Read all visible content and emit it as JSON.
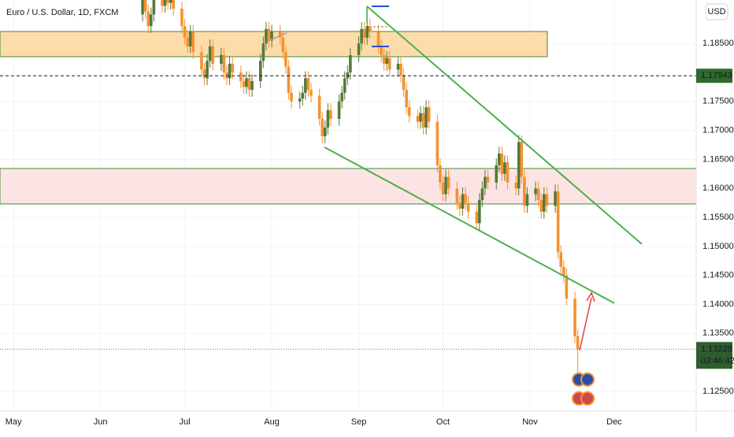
{
  "chart_data": {
    "type": "candlestick",
    "title": "Euro / U.S. Dollar, 1D, FXCM",
    "currency": "USD",
    "x": [
      46,
      47,
      48,
      49,
      50,
      53,
      54,
      55,
      56,
      57,
      60,
      61,
      62,
      63,
      64,
      67,
      68,
      69,
      70,
      71,
      74,
      75,
      76,
      77,
      78,
      81,
      82,
      83,
      84,
      85,
      88,
      89,
      90,
      91,
      92,
      95,
      96,
      97,
      98,
      99,
      102,
      103,
      104,
      105,
      106,
      109,
      110,
      111,
      112,
      113,
      116,
      117,
      118,
      119,
      120,
      123,
      124,
      125,
      126,
      127,
      130,
      131,
      132,
      133,
      134,
      137,
      138,
      139,
      140,
      141,
      144,
      145,
      146,
      147,
      148,
      151,
      152,
      153,
      154,
      155,
      158,
      159,
      160,
      161,
      162,
      165,
      166,
      167,
      168,
      169,
      172,
      173,
      174,
      175,
      176,
      179,
      180,
      181,
      182,
      183,
      186,
      187,
      188,
      189,
      190,
      193,
      194,
      195,
      196,
      197,
      200,
      201
    ],
    "open": [
      1.19,
      1.193,
      1.1905,
      1.188,
      1.19,
      1.1925,
      1.1915,
      1.1935,
      1.192,
      1.193,
      1.191,
      1.188,
      1.186,
      1.1845,
      1.187,
      1.1835,
      1.1805,
      1.179,
      1.182,
      1.1845,
      1.1815,
      1.183,
      1.18,
      1.179,
      1.1815,
      1.18,
      1.1785,
      1.1775,
      1.179,
      1.177,
      1.1785,
      1.182,
      1.185,
      1.1875,
      1.1855,
      1.187,
      1.186,
      1.1835,
      1.181,
      1.1765,
      1.175,
      1.1755,
      1.1765,
      1.179,
      1.177,
      1.176,
      1.172,
      1.169,
      1.1705,
      1.1735,
      1.172,
      1.175,
      1.1765,
      1.179,
      1.18,
      1.183,
      1.185,
      1.1875,
      1.186,
      1.188,
      1.187,
      1.1845,
      1.183,
      1.1815,
      1.1825,
      1.1805,
      1.1815,
      1.1795,
      1.177,
      1.174,
      1.1725,
      1.1715,
      1.173,
      1.1705,
      1.174,
      1.1715,
      1.164,
      1.161,
      1.159,
      1.162,
      1.16,
      1.1575,
      1.1565,
      1.159,
      1.1575,
      1.156,
      1.154,
      1.158,
      1.16,
      1.162,
      1.161,
      1.164,
      1.166,
      1.1625,
      1.1645,
      1.161,
      1.16,
      1.168,
      1.162,
      1.157,
      1.159,
      1.16,
      1.158,
      1.156,
      1.159,
      1.157,
      1.1595,
      1.149,
      1.1465,
      1.145,
      1.141,
      1.1345
    ],
    "high": [
      1.1942,
      1.1942,
      1.1917,
      1.1912,
      1.1937,
      1.1937,
      1.1947,
      1.1947,
      1.1942,
      1.1942,
      1.1922,
      1.1892,
      1.1872,
      1.1882,
      1.1882,
      1.1847,
      1.1817,
      1.1832,
      1.1857,
      1.1857,
      1.1842,
      1.1842,
      1.1812,
      1.1827,
      1.1827,
      1.1812,
      1.1797,
      1.1802,
      1.1802,
      1.1797,
      1.1832,
      1.1862,
      1.1887,
      1.1887,
      1.1882,
      1.1882,
      1.1872,
      1.1847,
      1.1822,
      1.1777,
      1.1767,
      1.1777,
      1.1802,
      1.1802,
      1.1782,
      1.1772,
      1.1732,
      1.1717,
      1.1747,
      1.1747,
      1.1762,
      1.1777,
      1.1802,
      1.1812,
      1.1842,
      1.1862,
      1.1887,
      1.1887,
      1.191,
      1.1892,
      1.1882,
      1.1857,
      1.1842,
      1.1837,
      1.1837,
      1.1827,
      1.1827,
      1.1807,
      1.1782,
      1.1752,
      1.1737,
      1.1742,
      1.1742,
      1.1752,
      1.1752,
      1.1727,
      1.1652,
      1.1622,
      1.1632,
      1.1632,
      1.1612,
      1.1587,
      1.1602,
      1.1602,
      1.1587,
      1.1572,
      1.1592,
      1.1612,
      1.1632,
      1.1632,
      1.1652,
      1.1672,
      1.1672,
      1.1657,
      1.1657,
      1.1622,
      1.1692,
      1.1692,
      1.1632,
      1.1602,
      1.1612,
      1.1612,
      1.1592,
      1.1602,
      1.1602,
      1.1607,
      1.1607,
      1.1502,
      1.1477,
      1.1462,
      1.1422,
      1.1357
    ],
    "low": [
      1.1888,
      1.1893,
      1.1868,
      1.1868,
      1.1888,
      1.1903,
      1.1903,
      1.1908,
      1.1908,
      1.1898,
      1.1868,
      1.1848,
      1.1833,
      1.1833,
      1.1823,
      1.1793,
      1.1778,
      1.1778,
      1.1808,
      1.1803,
      1.1803,
      1.1788,
      1.1778,
      1.1778,
      1.1788,
      1.1773,
      1.1763,
      1.1763,
      1.1758,
      1.1758,
      1.1773,
      1.1808,
      1.1838,
      1.1843,
      1.1843,
      1.1848,
      1.1823,
      1.1798,
      1.1753,
      1.1738,
      1.1738,
      1.1743,
      1.1753,
      1.1758,
      1.1748,
      1.1708,
      1.1678,
      1.1678,
      1.1693,
      1.1708,
      1.1708,
      1.1738,
      1.1753,
      1.1778,
      1.1788,
      1.1818,
      1.1838,
      1.1848,
      1.1848,
      1.1858,
      1.1833,
      1.1818,
      1.1803,
      1.1803,
      1.1793,
      1.1793,
      1.1783,
      1.1758,
      1.1728,
      1.1713,
      1.1703,
      1.1703,
      1.1693,
      1.1693,
      1.1703,
      1.1628,
      1.1598,
      1.1578,
      1.1578,
      1.1588,
      1.1563,
      1.1553,
      1.1553,
      1.1563,
      1.1548,
      1.1528,
      1.1528,
      1.1568,
      1.1588,
      1.1598,
      1.1598,
      1.1628,
      1.1613,
      1.1613,
      1.1598,
      1.1588,
      1.1588,
      1.1608,
      1.1558,
      1.1558,
      1.1578,
      1.1568,
      1.1548,
      1.1548,
      1.1558,
      1.1558,
      1.1478,
      1.1453,
      1.1438,
      1.1398,
      1.1333,
      1.127
    ],
    "close": [
      1.193,
      1.1905,
      1.188,
      1.19,
      1.1925,
      1.1915,
      1.1935,
      1.192,
      1.193,
      1.191,
      1.188,
      1.186,
      1.1845,
      1.187,
      1.1835,
      1.1805,
      1.179,
      1.182,
      1.1845,
      1.1815,
      1.183,
      1.18,
      1.179,
      1.1815,
      1.18,
      1.1785,
      1.1775,
      1.179,
      1.177,
      1.1785,
      1.182,
      1.185,
      1.1875,
      1.1855,
      1.187,
      1.186,
      1.1835,
      1.181,
      1.1765,
      1.175,
      1.1755,
      1.1765,
      1.179,
      1.177,
      1.176,
      1.172,
      1.169,
      1.1705,
      1.1735,
      1.172,
      1.175,
      1.1765,
      1.179,
      1.18,
      1.183,
      1.185,
      1.1875,
      1.186,
      1.188,
      1.187,
      1.1845,
      1.183,
      1.1815,
      1.1825,
      1.1805,
      1.1815,
      1.1795,
      1.177,
      1.174,
      1.1725,
      1.1715,
      1.173,
      1.1705,
      1.174,
      1.1715,
      1.164,
      1.161,
      1.159,
      1.162,
      1.16,
      1.1575,
      1.1565,
      1.159,
      1.1575,
      1.156,
      1.154,
      1.158,
      1.16,
      1.162,
      1.161,
      1.164,
      1.166,
      1.1625,
      1.1645,
      1.161,
      1.16,
      1.168,
      1.162,
      1.157,
      1.159,
      1.16,
      1.158,
      1.156,
      1.159,
      1.157,
      1.1595,
      1.149,
      1.1465,
      1.145,
      1.141,
      1.1345,
      1.13228
    ],
    "up_color": "#55793a",
    "down_color": "#f5922f",
    "xlim": [
      -4.8,
      243.2
    ],
    "xticks": [
      {
        "value": 0,
        "label": "May"
      },
      {
        "value": 31,
        "label": "Jun"
      },
      {
        "value": 61,
        "label": "Jul"
      },
      {
        "value": 92,
        "label": "Aug"
      },
      {
        "value": 123,
        "label": "Sep"
      },
      {
        "value": 153,
        "label": "Oct"
      },
      {
        "value": 184,
        "label": "Nov"
      },
      {
        "value": 214,
        "label": "Dec"
      }
    ],
    "ylim": [
      1.1216,
      1.1925
    ],
    "yticks": [
      {
        "value": 1.125,
        "label": "1.12500"
      },
      {
        "value": 1.135,
        "label": "1.13500"
      },
      {
        "value": 1.14,
        "label": "1.14000"
      },
      {
        "value": 1.145,
        "label": "1.14500"
      },
      {
        "value": 1.15,
        "label": "1.15000"
      },
      {
        "value": 1.155,
        "label": "1.15500"
      },
      {
        "value": 1.16,
        "label": "1.16000"
      },
      {
        "value": 1.165,
        "label": "1.16500"
      },
      {
        "value": 1.17,
        "label": "1.17000"
      },
      {
        "value": 1.175,
        "label": "1.17500"
      },
      {
        "value": 1.185,
        "label": "1.18500"
      }
    ],
    "grid": true,
    "marked_price": {
      "value": 1.17943,
      "label": "1.17943"
    },
    "current_price": {
      "value": 1.13228,
      "label": "1.13228"
    },
    "countdown": "03:46:42"
  }
}
